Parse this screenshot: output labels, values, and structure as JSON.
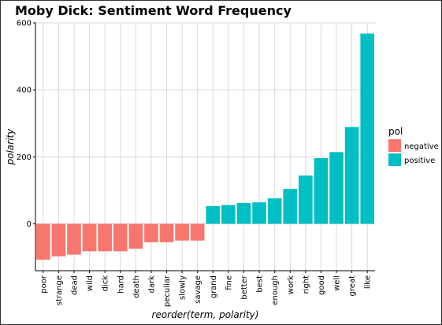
{
  "chart_data": {
    "type": "bar",
    "title": "Moby Dick: Sentiment Word Frequency",
    "xlabel": "reorder(term, polarity)",
    "ylabel": "polarity",
    "ylim": [
      -140,
      600
    ],
    "yticks": [
      0,
      200,
      400,
      600
    ],
    "grid": true,
    "legend": {
      "title": "pol",
      "position": "right",
      "entries": [
        {
          "label": "negative",
          "color": "#F8766D"
        },
        {
          "label": "positive",
          "color": "#00BFC4"
        }
      ]
    },
    "categories": [
      "poor",
      "strange",
      "dead",
      "wild",
      "dick",
      "hard",
      "death",
      "dark",
      "peculiar",
      "slowly",
      "savage",
      "grand",
      "fine",
      "better",
      "best",
      "enough",
      "work",
      "right",
      "good",
      "well",
      "great",
      "like"
    ],
    "values": [
      -107,
      -97,
      -92,
      -82,
      -82,
      -82,
      -74,
      -55,
      -55,
      -50,
      -50,
      53,
      56,
      62,
      64,
      76,
      104,
      144,
      196,
      214,
      289,
      568
    ],
    "pol": [
      "negative",
      "negative",
      "negative",
      "negative",
      "negative",
      "negative",
      "negative",
      "negative",
      "negative",
      "negative",
      "negative",
      "positive",
      "positive",
      "positive",
      "positive",
      "positive",
      "positive",
      "positive",
      "positive",
      "positive",
      "positive",
      "positive"
    ]
  }
}
